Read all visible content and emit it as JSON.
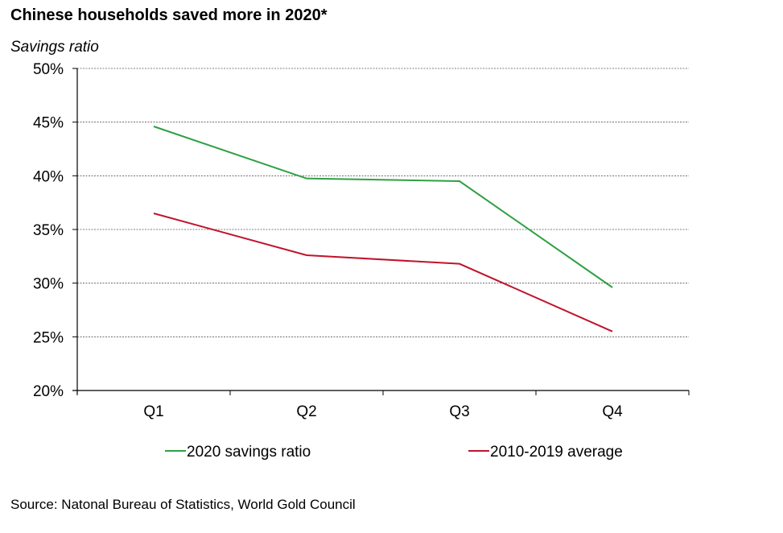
{
  "title": "Chinese households saved more in 2020*",
  "subtitle": "Savings ratio",
  "source": "Source: Natonal Bureau of Statistics, World Gold Council",
  "chart_data": {
    "type": "line",
    "title": "Chinese households saved more in 2020*",
    "ylabel": "Savings ratio",
    "xlabel": "",
    "categories": [
      "Q1",
      "Q2",
      "Q3",
      "Q4"
    ],
    "ylim": [
      20,
      50
    ],
    "yticks": [
      20,
      25,
      30,
      35,
      40,
      45,
      50
    ],
    "ytick_labels": [
      "20%",
      "25%",
      "30%",
      "35%",
      "40%",
      "45%",
      "50%"
    ],
    "grid": "horizontal-dashed",
    "legend_position": "bottom",
    "series": [
      {
        "name": "2020 savings ratio",
        "color": "#2ea043",
        "values": [
          44.6,
          39.75,
          39.5,
          29.6
        ]
      },
      {
        "name": "2010-2019 average",
        "color": "#c0142c",
        "values": [
          36.5,
          32.6,
          31.8,
          25.5
        ]
      }
    ]
  }
}
